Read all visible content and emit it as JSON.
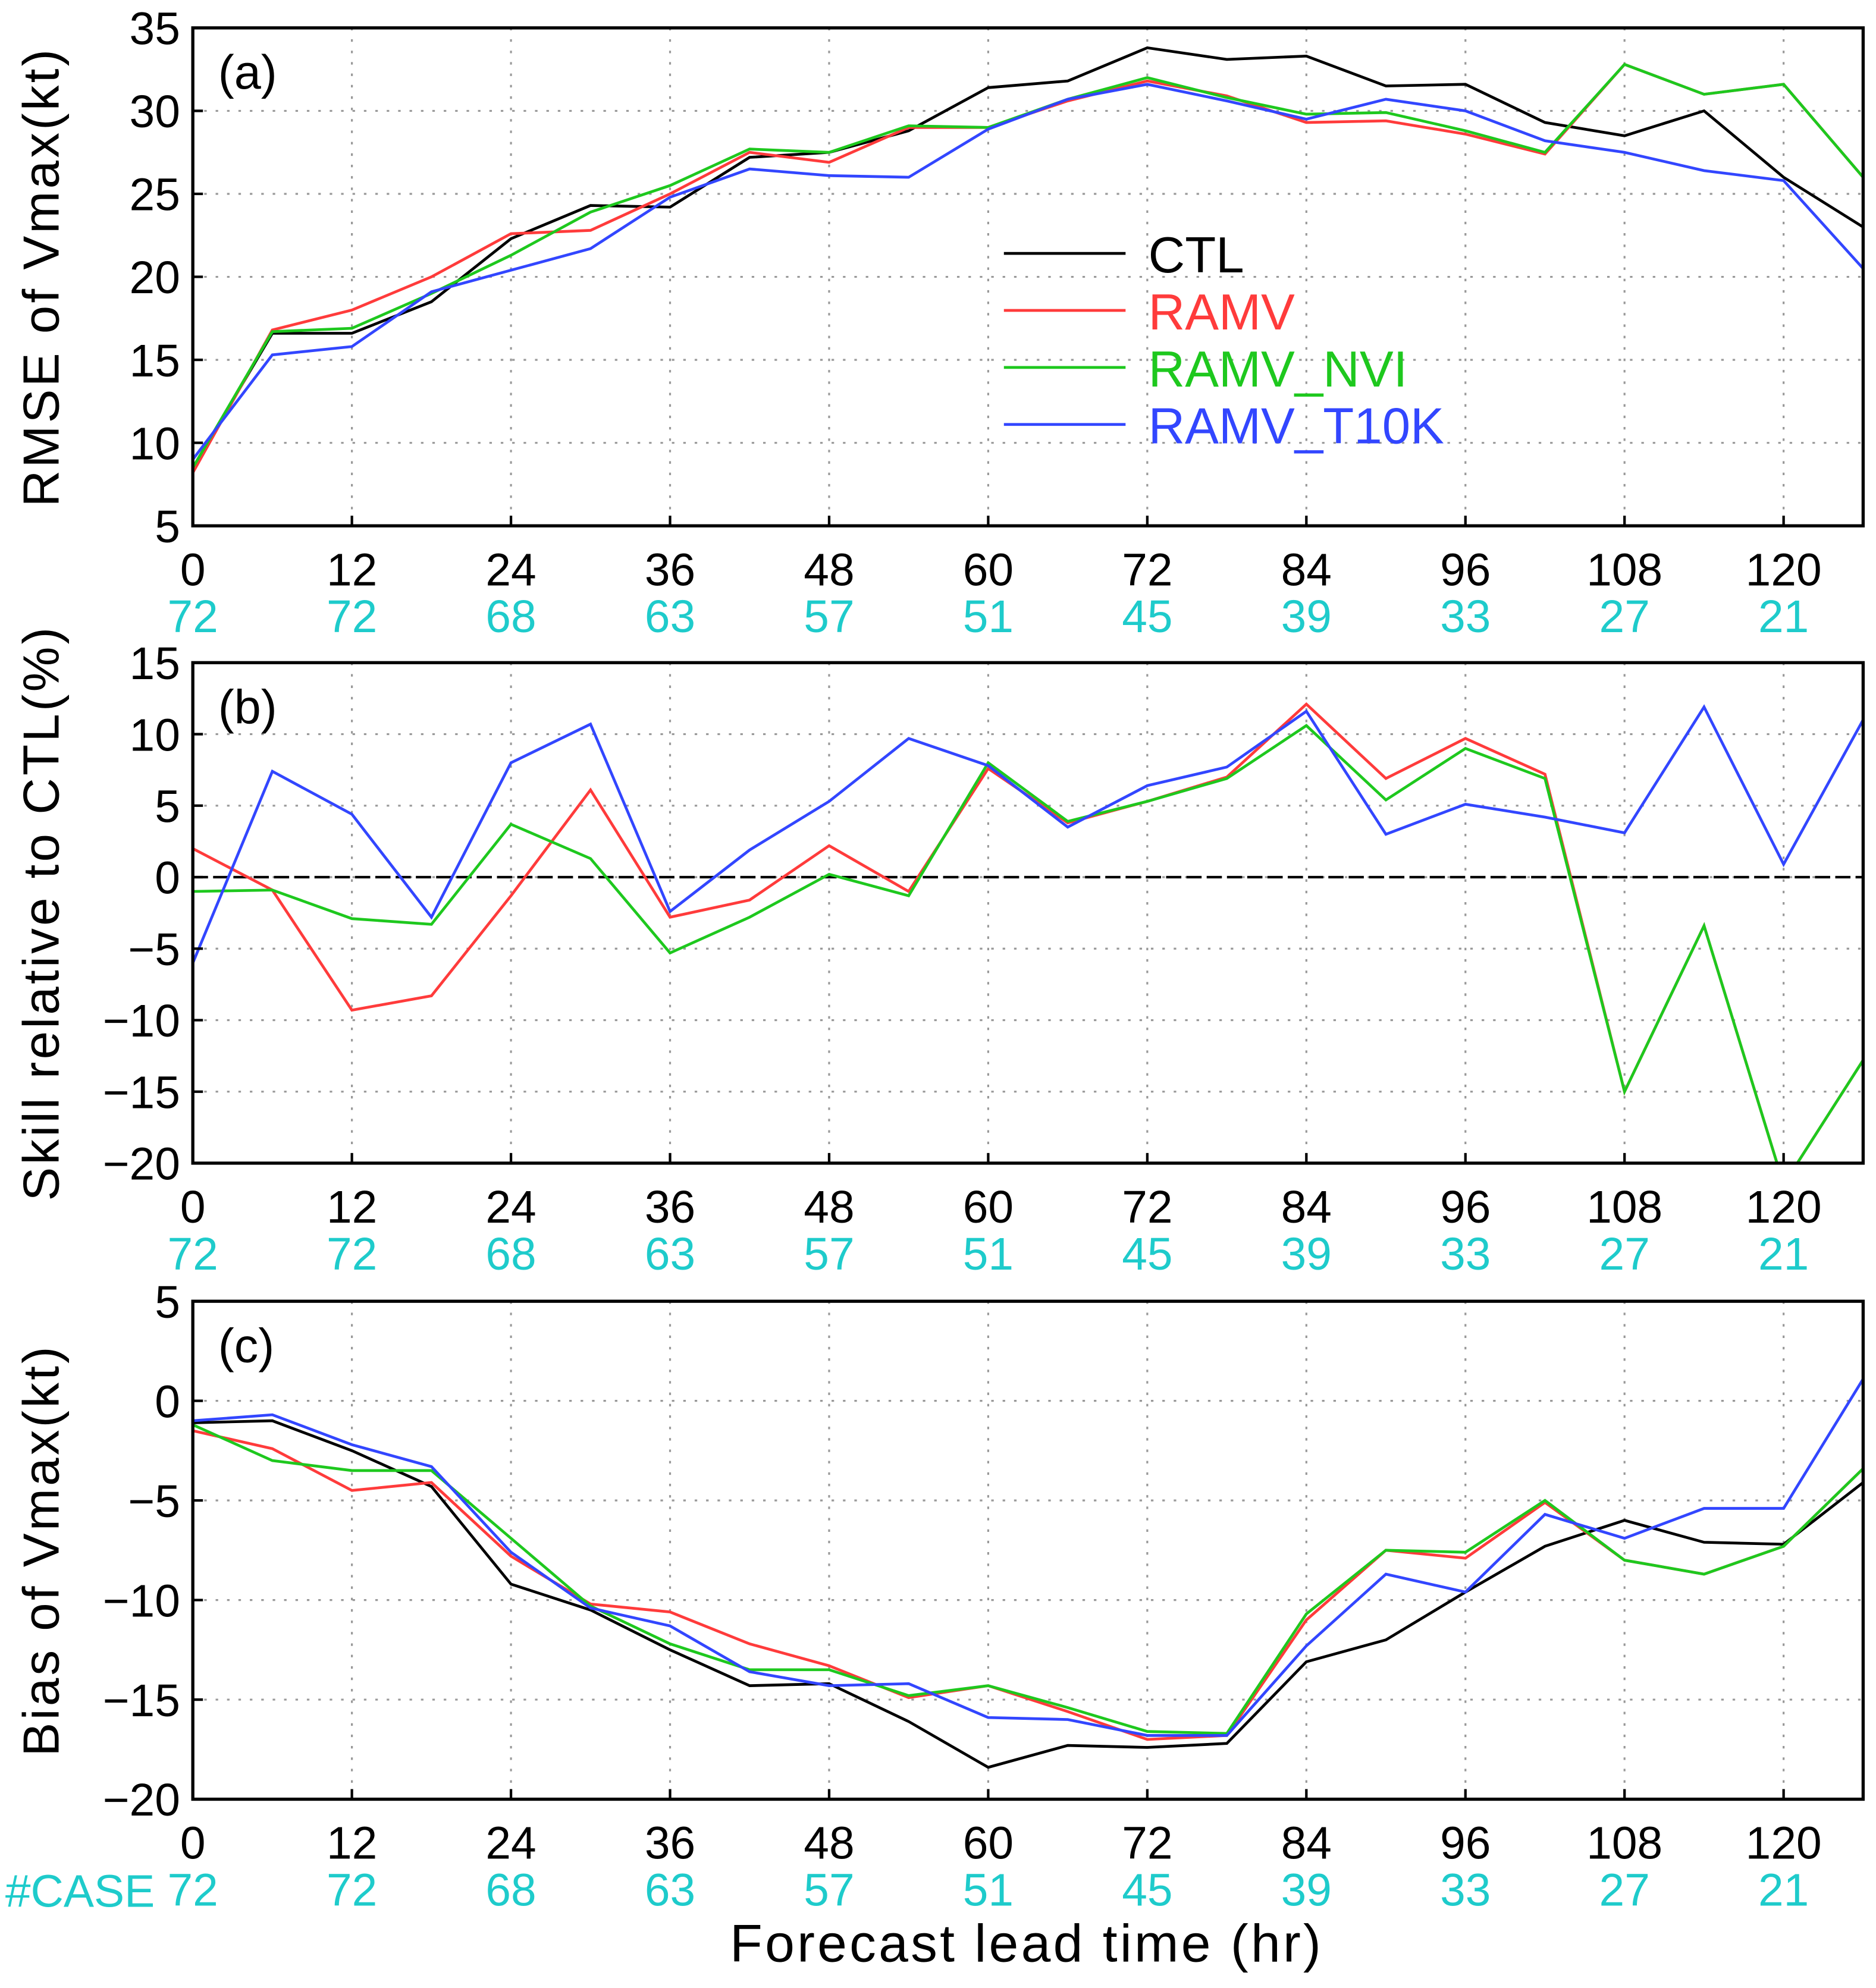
{
  "colors": {
    "CTL": "#000000",
    "RAMV": "#ff3b3b",
    "RAMV_NVI": "#1ec81e",
    "RAMV_T10K": "#3246ff",
    "case": "#1ecbcb"
  },
  "xlabel": "Forecast lead time (hr)",
  "case_label": "#CASE",
  "x_ticks": [
    0,
    12,
    24,
    36,
    48,
    60,
    72,
    84,
    96,
    108,
    120
  ],
  "case_counts": [
    "72",
    "72",
    "68",
    "63",
    "57",
    "51",
    "45",
    "39",
    "33",
    "27",
    "21"
  ],
  "chart_data": [
    {
      "type": "line",
      "panel": "(a)",
      "ylabel": "RMSE of Vmax(kt)",
      "ylim": [
        5,
        35
      ],
      "yticks": [
        5,
        10,
        15,
        20,
        25,
        30,
        35
      ],
      "xlim": [
        0,
        126
      ],
      "grid": true,
      "legend": {
        "placement": "center",
        "entries": [
          "CTL",
          "RAMV",
          "RAMV_NVI",
          "RAMV_T10K"
        ]
      },
      "x": [
        0,
        6,
        12,
        18,
        24,
        30,
        36,
        42,
        48,
        54,
        60,
        66,
        72,
        78,
        84,
        90,
        96,
        102,
        108,
        114,
        120,
        126
      ],
      "series": [
        {
          "name": "CTL",
          "values": [
            8.5,
            16.6,
            16.6,
            18.5,
            22.3,
            24.3,
            24.2,
            27.2,
            27.5,
            28.8,
            31.4,
            31.8,
            33.8,
            33.1,
            33.3,
            31.5,
            31.6,
            29.3,
            28.5,
            30.0,
            26.0,
            23.0
          ]
        },
        {
          "name": "RAMV",
          "values": [
            8.2,
            16.8,
            18.0,
            20.0,
            22.6,
            22.8,
            25.0,
            27.5,
            26.9,
            29.0,
            29.0,
            30.6,
            31.8,
            30.9,
            29.3,
            29.4,
            28.6,
            27.4,
            32.8,
            31.0,
            31.6,
            26.0
          ]
        },
        {
          "name": "RAMV_NVI",
          "values": [
            8.5,
            16.7,
            16.9,
            19.0,
            21.3,
            23.9,
            25.5,
            27.7,
            27.5,
            29.1,
            29.0,
            30.7,
            32.0,
            30.8,
            29.8,
            29.9,
            28.8,
            27.5,
            32.8,
            31.0,
            31.6,
            26.0
          ]
        },
        {
          "name": "RAMV_T10K",
          "values": [
            9.0,
            15.3,
            15.8,
            19.1,
            20.4,
            21.7,
            24.8,
            26.5,
            26.1,
            26.0,
            28.9,
            30.7,
            31.6,
            30.6,
            29.5,
            30.7,
            30.0,
            28.2,
            27.5,
            26.4,
            25.8,
            20.5
          ]
        }
      ]
    },
    {
      "type": "line",
      "panel": "(b)",
      "ylabel": "Skill relative to CTL(%)",
      "ylim": [
        -20,
        15
      ],
      "yticks": [
        -20,
        -15,
        -10,
        -5,
        0,
        5,
        10,
        15
      ],
      "xlim": [
        0,
        126
      ],
      "grid": true,
      "zero_line": true,
      "x": [
        0,
        6,
        12,
        18,
        24,
        30,
        36,
        42,
        48,
        54,
        60,
        66,
        72,
        78,
        84,
        90,
        96,
        102,
        108,
        114,
        120,
        126
      ],
      "series": [
        {
          "name": "RAMV",
          "values": [
            2.0,
            -0.9,
            -9.3,
            -8.3,
            -1.3,
            6.1,
            -2.8,
            -1.6,
            2.2,
            -1.0,
            7.6,
            3.8,
            5.3,
            7.0,
            12.1,
            6.9,
            9.7,
            7.2,
            -15.0,
            -3.4,
            -21.5,
            -12.8
          ]
        },
        {
          "name": "RAMV_NVI",
          "values": [
            -1.0,
            -0.9,
            -2.9,
            -3.3,
            3.7,
            1.3,
            -5.3,
            -2.8,
            0.2,
            -1.3,
            8.0,
            3.9,
            5.3,
            6.9,
            10.6,
            5.4,
            9.0,
            6.9,
            -15.0,
            -3.4,
            -21.5,
            -12.8
          ]
        },
        {
          "name": "RAMV_T10K",
          "values": [
            -6.0,
            7.4,
            4.4,
            -2.8,
            8.0,
            10.7,
            -2.4,
            1.9,
            5.3,
            9.7,
            7.8,
            3.5,
            6.4,
            7.7,
            11.6,
            3.0,
            5.1,
            4.2,
            3.1,
            11.9,
            0.9,
            11.0
          ]
        }
      ]
    },
    {
      "type": "line",
      "panel": "(c)",
      "ylabel": "Bias of Vmax(kt)",
      "ylim": [
        -20,
        5
      ],
      "yticks": [
        -20,
        -15,
        -10,
        -5,
        0,
        5
      ],
      "xlim": [
        0,
        126
      ],
      "grid": true,
      "x": [
        0,
        6,
        12,
        18,
        24,
        30,
        36,
        42,
        48,
        54,
        60,
        66,
        72,
        78,
        84,
        90,
        96,
        102,
        108,
        114,
        120,
        126
      ],
      "series": [
        {
          "name": "CTL",
          "values": [
            -1.1,
            -1.0,
            -2.5,
            -4.3,
            -9.2,
            -10.5,
            -12.5,
            -14.3,
            -14.2,
            -16.1,
            -18.4,
            -17.3,
            -17.4,
            -17.2,
            -13.1,
            -12.0,
            -9.6,
            -7.3,
            -6.0,
            -7.1,
            -7.2,
            -4.1
          ]
        },
        {
          "name": "RAMV",
          "values": [
            -1.5,
            -2.4,
            -4.5,
            -4.1,
            -7.8,
            -10.2,
            -10.6,
            -12.2,
            -13.3,
            -14.9,
            -14.3,
            -15.6,
            -17.0,
            -16.8,
            -11.0,
            -7.5,
            -7.9,
            -5.1,
            -8.0,
            -8.7,
            -7.3,
            -3.4
          ]
        },
        {
          "name": "RAMV_NVI",
          "values": [
            -1.2,
            -3.0,
            -3.5,
            -3.5,
            -6.9,
            -10.3,
            -12.2,
            -13.5,
            -13.5,
            -14.8,
            -14.3,
            -15.4,
            -16.6,
            -16.7,
            -10.7,
            -7.5,
            -7.6,
            -5.0,
            -8.0,
            -8.7,
            -7.3,
            -3.4
          ]
        },
        {
          "name": "RAMV_T10K",
          "values": [
            -1.0,
            -0.7,
            -2.2,
            -3.3,
            -7.6,
            -10.4,
            -11.3,
            -13.6,
            -14.3,
            -14.2,
            -15.9,
            -16.0,
            -16.8,
            -16.8,
            -12.3,
            -8.7,
            -9.6,
            -5.7,
            -6.9,
            -5.4,
            -5.4,
            1.1
          ]
        }
      ]
    }
  ]
}
